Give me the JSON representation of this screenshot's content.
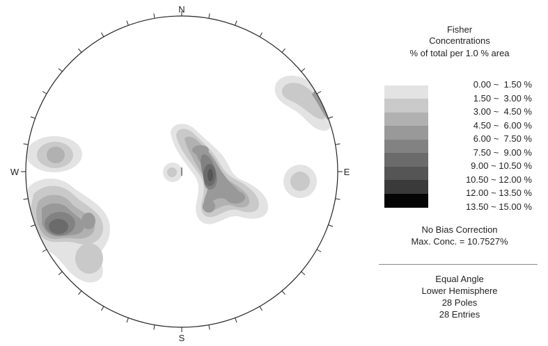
{
  "compass": {
    "north": "N",
    "south": "S",
    "east": "E",
    "west": "W"
  },
  "legend": {
    "title": "Fisher",
    "subtitle": "Concentrations",
    "unit": "% of total per 1.0 % area",
    "bins": [
      {
        "label": "  0.00 ~  1.50 %",
        "color": "#ffffff"
      },
      {
        "label": "  1.50 ~  3.00 %",
        "color": "#e3e3e3"
      },
      {
        "label": "  3.00 ~  4.50 %",
        "color": "#c9c9c9"
      },
      {
        "label": "  4.50 ~  6.00 %",
        "color": "#b1b1b1"
      },
      {
        "label": "  6.00 ~  7.50 %",
        "color": "#999999"
      },
      {
        "label": "  7.50 ~  9.00 %",
        "color": "#828282"
      },
      {
        "label": "  9.00 ~ 10.50 %",
        "color": "#6b6b6b"
      },
      {
        "label": "10.50 ~ 12.00 %",
        "color": "#555555"
      },
      {
        "label": "12.00 ~ 13.50 %",
        "color": "#3a3a3a"
      },
      {
        "label": "13.50 ~ 15.00 %",
        "color": "#050505"
      }
    ],
    "bias": "No Bias Correction",
    "max_conc": "Max. Conc. = 10.7527%",
    "projection": "Equal Angle",
    "hemisphere": "Lower Hemisphere",
    "poles": "28 Poles",
    "entries": "28 Entries"
  }
}
